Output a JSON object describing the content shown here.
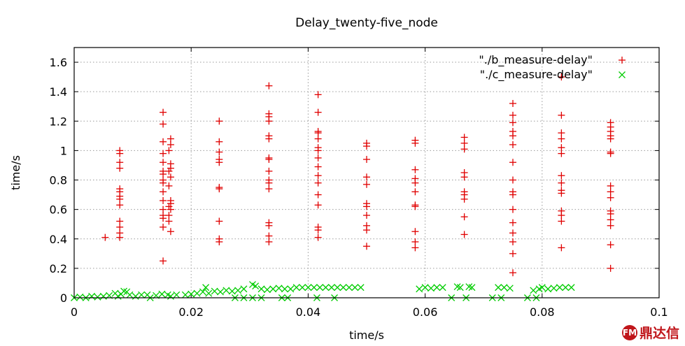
{
  "chart_data": {
    "type": "scatter",
    "title": "Delay_twenty-five_node",
    "xlabel": "time/s",
    "ylabel": "time/s",
    "xlim": [
      0,
      0.1
    ],
    "ylim": [
      0,
      1.7
    ],
    "x_ticks": [
      "0",
      "0.02",
      "0.04",
      "0.06",
      "0.08",
      "0.1"
    ],
    "y_ticks": [
      "0",
      "0.2",
      "0.4",
      "0.6",
      "0.8",
      "1",
      "1.2",
      "1.4",
      "1.6"
    ],
    "grid": true,
    "legend_position": "top-right",
    "series": [
      {
        "name": "\"./b_measure-delay\"",
        "marker": "plus",
        "color": "#e00000",
        "points": [
          [
            0.0053,
            0.41
          ],
          [
            0.0078,
            1.0
          ],
          [
            0.0078,
            0.98
          ],
          [
            0.0078,
            0.92
          ],
          [
            0.0078,
            0.88
          ],
          [
            0.0078,
            0.74
          ],
          [
            0.0078,
            0.72
          ],
          [
            0.0078,
            0.69
          ],
          [
            0.0078,
            0.67
          ],
          [
            0.0078,
            0.63
          ],
          [
            0.0078,
            0.52
          ],
          [
            0.0078,
            0.48
          ],
          [
            0.0078,
            0.44
          ],
          [
            0.0078,
            0.41
          ],
          [
            0.0152,
            1.26
          ],
          [
            0.0152,
            1.18
          ],
          [
            0.0152,
            1.06
          ],
          [
            0.0152,
            0.98
          ],
          [
            0.0152,
            0.92
          ],
          [
            0.0152,
            0.86
          ],
          [
            0.0152,
            0.84
          ],
          [
            0.0152,
            0.8
          ],
          [
            0.0152,
            0.78
          ],
          [
            0.0152,
            0.72
          ],
          [
            0.0152,
            0.66
          ],
          [
            0.0152,
            0.6
          ],
          [
            0.0152,
            0.56
          ],
          [
            0.0152,
            0.54
          ],
          [
            0.0152,
            0.48
          ],
          [
            0.0152,
            0.25
          ],
          [
            0.0162,
            1.0
          ],
          [
            0.0162,
            0.86
          ],
          [
            0.0162,
            0.76
          ],
          [
            0.0162,
            0.62
          ],
          [
            0.0162,
            0.56
          ],
          [
            0.0162,
            0.52
          ],
          [
            0.0165,
            1.08
          ],
          [
            0.0165,
            1.04
          ],
          [
            0.0165,
            0.91
          ],
          [
            0.0165,
            0.88
          ],
          [
            0.0165,
            0.82
          ],
          [
            0.0165,
            0.66
          ],
          [
            0.0165,
            0.64
          ],
          [
            0.0165,
            0.6
          ],
          [
            0.0165,
            0.45
          ],
          [
            0.0248,
            1.2
          ],
          [
            0.0248,
            1.06
          ],
          [
            0.0248,
            0.99
          ],
          [
            0.0248,
            0.94
          ],
          [
            0.0248,
            0.92
          ],
          [
            0.0248,
            0.75
          ],
          [
            0.0248,
            0.74
          ],
          [
            0.0248,
            0.52
          ],
          [
            0.0248,
            0.4
          ],
          [
            0.0248,
            0.38
          ],
          [
            0.0333,
            1.44
          ],
          [
            0.0333,
            1.25
          ],
          [
            0.0333,
            1.23
          ],
          [
            0.0333,
            1.2
          ],
          [
            0.0333,
            1.1
          ],
          [
            0.0333,
            1.08
          ],
          [
            0.0333,
            0.95
          ],
          [
            0.0333,
            0.94
          ],
          [
            0.0333,
            0.86
          ],
          [
            0.0333,
            0.8
          ],
          [
            0.0333,
            0.78
          ],
          [
            0.0333,
            0.74
          ],
          [
            0.0333,
            0.51
          ],
          [
            0.0333,
            0.49
          ],
          [
            0.0333,
            0.42
          ],
          [
            0.0333,
            0.38
          ],
          [
            0.0417,
            1.38
          ],
          [
            0.0417,
            1.26
          ],
          [
            0.0417,
            1.13
          ],
          [
            0.0417,
            1.12
          ],
          [
            0.0417,
            1.08
          ],
          [
            0.0417,
            1.02
          ],
          [
            0.0417,
            1.0
          ],
          [
            0.0417,
            0.95
          ],
          [
            0.0417,
            0.89
          ],
          [
            0.0417,
            0.83
          ],
          [
            0.0417,
            0.78
          ],
          [
            0.0417,
            0.7
          ],
          [
            0.0417,
            0.63
          ],
          [
            0.0417,
            0.48
          ],
          [
            0.0417,
            0.46
          ],
          [
            0.0417,
            0.41
          ],
          [
            0.05,
            1.05
          ],
          [
            0.05,
            1.03
          ],
          [
            0.05,
            0.94
          ],
          [
            0.05,
            0.82
          ],
          [
            0.05,
            0.77
          ],
          [
            0.05,
            0.64
          ],
          [
            0.05,
            0.62
          ],
          [
            0.05,
            0.56
          ],
          [
            0.05,
            0.49
          ],
          [
            0.05,
            0.46
          ],
          [
            0.05,
            0.35
          ],
          [
            0.0583,
            1.07
          ],
          [
            0.0583,
            1.05
          ],
          [
            0.0583,
            0.87
          ],
          [
            0.0583,
            0.81
          ],
          [
            0.0583,
            0.78
          ],
          [
            0.0583,
            0.72
          ],
          [
            0.0583,
            0.63
          ],
          [
            0.0583,
            0.62
          ],
          [
            0.0583,
            0.45
          ],
          [
            0.0583,
            0.38
          ],
          [
            0.0583,
            0.34
          ],
          [
            0.0667,
            1.09
          ],
          [
            0.0667,
            1.05
          ],
          [
            0.0667,
            1.01
          ],
          [
            0.0667,
            0.85
          ],
          [
            0.0667,
            0.82
          ],
          [
            0.0667,
            0.72
          ],
          [
            0.0667,
            0.7
          ],
          [
            0.0667,
            0.67
          ],
          [
            0.0667,
            0.55
          ],
          [
            0.0667,
            0.43
          ],
          [
            0.075,
            1.32
          ],
          [
            0.075,
            1.24
          ],
          [
            0.075,
            1.19
          ],
          [
            0.075,
            1.13
          ],
          [
            0.075,
            1.1
          ],
          [
            0.075,
            1.04
          ],
          [
            0.075,
            0.92
          ],
          [
            0.075,
            0.8
          ],
          [
            0.075,
            0.72
          ],
          [
            0.075,
            0.7
          ],
          [
            0.075,
            0.6
          ],
          [
            0.075,
            0.51
          ],
          [
            0.075,
            0.44
          ],
          [
            0.075,
            0.38
          ],
          [
            0.075,
            0.3
          ],
          [
            0.075,
            0.17
          ],
          [
            0.0833,
            1.5
          ],
          [
            0.0833,
            1.24
          ],
          [
            0.0833,
            1.12
          ],
          [
            0.0833,
            1.08
          ],
          [
            0.0833,
            1.02
          ],
          [
            0.0833,
            0.98
          ],
          [
            0.0833,
            0.83
          ],
          [
            0.0833,
            0.78
          ],
          [
            0.0833,
            0.73
          ],
          [
            0.0833,
            0.71
          ],
          [
            0.0833,
            0.59
          ],
          [
            0.0833,
            0.56
          ],
          [
            0.0833,
            0.52
          ],
          [
            0.0833,
            0.34
          ],
          [
            0.0917,
            1.19
          ],
          [
            0.0917,
            1.16
          ],
          [
            0.0917,
            1.13
          ],
          [
            0.0917,
            1.1
          ],
          [
            0.0917,
            1.08
          ],
          [
            0.0917,
            0.99
          ],
          [
            0.0917,
            0.98
          ],
          [
            0.0917,
            0.76
          ],
          [
            0.0917,
            0.72
          ],
          [
            0.0917,
            0.68
          ],
          [
            0.0917,
            0.59
          ],
          [
            0.0917,
            0.57
          ],
          [
            0.0917,
            0.53
          ],
          [
            0.0917,
            0.49
          ],
          [
            0.0917,
            0.36
          ],
          [
            0.0917,
            0.2
          ]
        ]
      },
      {
        "name": "\"./c_measure-delay\"",
        "marker": "cross",
        "color": "#00cc00",
        "points": [
          [
            0.0,
            0.0
          ],
          [
            0.001,
            0.005
          ],
          [
            0.002,
            0.0
          ],
          [
            0.003,
            0.01
          ],
          [
            0.004,
            0.005
          ],
          [
            0.005,
            0.01
          ],
          [
            0.006,
            0.015
          ],
          [
            0.007,
            0.03
          ],
          [
            0.0075,
            0.01
          ],
          [
            0.008,
            0.025
          ],
          [
            0.0085,
            0.045
          ],
          [
            0.009,
            0.04
          ],
          [
            0.0095,
            0.02
          ],
          [
            0.0105,
            0.01
          ],
          [
            0.0115,
            0.02
          ],
          [
            0.0125,
            0.02
          ],
          [
            0.013,
            0.0
          ],
          [
            0.014,
            0.015
          ],
          [
            0.015,
            0.025
          ],
          [
            0.016,
            0.02
          ],
          [
            0.0165,
            0.01
          ],
          [
            0.0175,
            0.02
          ],
          [
            0.019,
            0.02
          ],
          [
            0.02,
            0.025
          ],
          [
            0.021,
            0.03
          ],
          [
            0.022,
            0.04
          ],
          [
            0.0225,
            0.07
          ],
          [
            0.023,
            0.03
          ],
          [
            0.024,
            0.045
          ],
          [
            0.025,
            0.04
          ],
          [
            0.026,
            0.05
          ],
          [
            0.027,
            0.045
          ],
          [
            0.028,
            0.05
          ],
          [
            0.029,
            0.06
          ],
          [
            0.0305,
            0.09
          ],
          [
            0.031,
            0.08
          ],
          [
            0.032,
            0.06
          ],
          [
            0.033,
            0.055
          ],
          [
            0.034,
            0.06
          ],
          [
            0.035,
            0.065
          ],
          [
            0.036,
            0.06
          ],
          [
            0.037,
            0.06
          ],
          [
            0.038,
            0.07
          ],
          [
            0.039,
            0.07
          ],
          [
            0.04,
            0.07
          ],
          [
            0.041,
            0.07
          ],
          [
            0.042,
            0.07
          ],
          [
            0.043,
            0.07
          ],
          [
            0.044,
            0.07
          ],
          [
            0.045,
            0.07
          ],
          [
            0.046,
            0.07
          ],
          [
            0.047,
            0.07
          ],
          [
            0.048,
            0.07
          ],
          [
            0.049,
            0.07
          ],
          [
            0.0275,
            0.0
          ],
          [
            0.029,
            0.0
          ],
          [
            0.0305,
            0.0
          ],
          [
            0.032,
            0.0
          ],
          [
            0.0355,
            0.0
          ],
          [
            0.0365,
            0.0
          ],
          [
            0.0415,
            0.0
          ],
          [
            0.0445,
            0.0
          ],
          [
            0.059,
            0.06
          ],
          [
            0.06,
            0.07
          ],
          [
            0.061,
            0.065
          ],
          [
            0.062,
            0.07
          ],
          [
            0.063,
            0.07
          ],
          [
            0.0645,
            0.0
          ],
          [
            0.0655,
            0.075
          ],
          [
            0.066,
            0.07
          ],
          [
            0.067,
            0.0
          ],
          [
            0.0675,
            0.075
          ],
          [
            0.068,
            0.07
          ],
          [
            0.0715,
            0.0
          ],
          [
            0.073,
            0.0
          ],
          [
            0.0725,
            0.07
          ],
          [
            0.0735,
            0.07
          ],
          [
            0.0745,
            0.065
          ],
          [
            0.0775,
            0.0
          ],
          [
            0.0785,
            0.05
          ],
          [
            0.079,
            0.0
          ],
          [
            0.0795,
            0.06
          ],
          [
            0.08,
            0.07
          ],
          [
            0.081,
            0.06
          ],
          [
            0.082,
            0.065
          ],
          [
            0.083,
            0.07
          ],
          [
            0.084,
            0.07
          ],
          [
            0.085,
            0.07
          ]
        ]
      }
    ]
  },
  "watermark": {
    "logo_text": "FM",
    "text": "鼎达信"
  }
}
